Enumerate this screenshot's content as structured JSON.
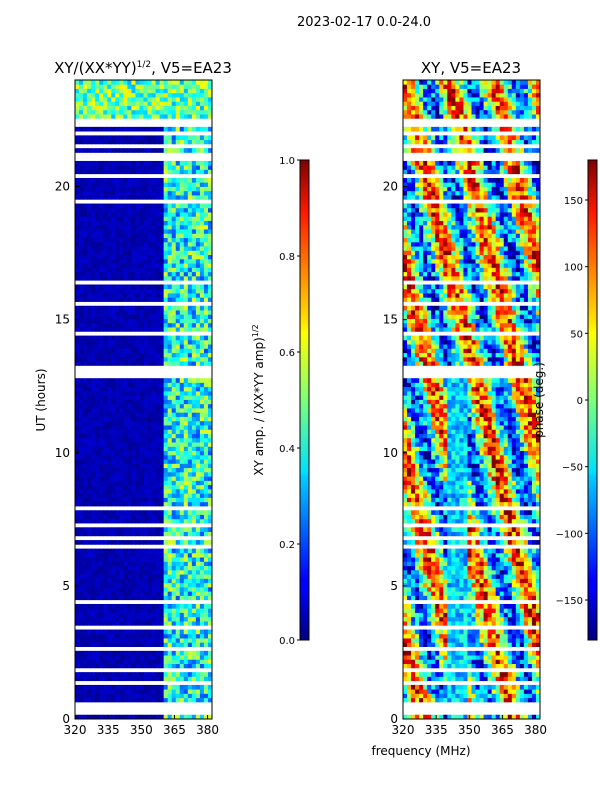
{
  "suptitle": "2023-02-17 0.0-24.0",
  "xlabel_common": "frequency (MHz)",
  "chart_data": [
    {
      "type": "heatmap",
      "title_main": "XY/(XX*YY)",
      "title_sup": "1/2",
      "title_tail": ", V5=EA23",
      "xlabel": "",
      "ylabel": "UT (hours)",
      "xlim": [
        320,
        382
      ],
      "ylim": [
        0,
        24
      ],
      "x_ticks": [
        320,
        335,
        350,
        365,
        380
      ],
      "y_ticks": [
        0,
        5,
        10,
        15,
        20
      ],
      "colormap": "jet",
      "colorbar": {
        "label_main": "XY amp. / (XX*YY amp)",
        "label_sup": "1/2",
        "range": [
          0.0,
          1.0
        ],
        "ticks": [
          "0.0",
          "0.2",
          "0.4",
          "0.6",
          "0.8",
          "1.0"
        ],
        "tick_values": [
          0.0,
          0.2,
          0.4,
          0.6,
          0.8,
          1.0
        ]
      },
      "description": "Normalized XY amplitude near 0 for 320-358 MHz most of the day, higher (~0.3-0.6) above 360 MHz; elevated values after 22 h."
    },
    {
      "type": "heatmap",
      "title": "XY, V5=EA23",
      "xlabel": "frequency (MHz)",
      "ylabel": "",
      "xlim": [
        320,
        382
      ],
      "ylim": [
        0,
        24
      ],
      "x_ticks": [
        320,
        335,
        350,
        365,
        380
      ],
      "y_ticks": [
        0,
        5,
        10,
        15,
        20
      ],
      "colormap": "jet",
      "colorbar": {
        "label": "phase (deg.)",
        "range": [
          -180,
          180
        ],
        "ticks": [
          "150",
          "100",
          "50",
          "0",
          "−50",
          "−100",
          "−150"
        ],
        "tick_values": [
          150,
          100,
          50,
          0,
          -50,
          -100,
          -150
        ]
      },
      "description": "XY phase wrapping across -180 to 180 deg with frequency-dependent stripes."
    }
  ]
}
